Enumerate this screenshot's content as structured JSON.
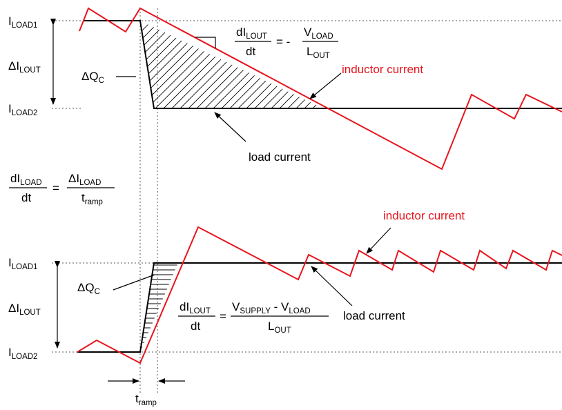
{
  "colors": {
    "inductor": "#e8141c",
    "load": "#000000",
    "guide": "#555555"
  },
  "top": {
    "i_load1": {
      "main": "I",
      "sub": "LOAD1"
    },
    "i_load2": {
      "main": "I",
      "sub": "LOAD2"
    },
    "delta_i_lout": {
      "main": "ΔI",
      "sub": "LOUT"
    },
    "delta_qc": {
      "main": "ΔQ",
      "sub": "C"
    },
    "slope_eq": {
      "num_main": "dI",
      "num_sub": "LOUT",
      "den": "dt",
      "equals": "= -",
      "rhs_num_main": "V",
      "rhs_num_sub": "LOAD",
      "rhs_den_main": "L",
      "rhs_den_sub": "OUT"
    },
    "inductor_label": "inductor current",
    "load_label": "load current"
  },
  "ramp_eq": {
    "num_main": "dI",
    "num_sub": "LOAD",
    "den": "dt",
    "equals": "=",
    "rhs_num_main": "ΔI",
    "rhs_num_sub": "LOAD",
    "rhs_den_main": "t",
    "rhs_den_sub": "ramp"
  },
  "bottom": {
    "i_load1": {
      "main": "I",
      "sub": "LOAD1"
    },
    "i_load2": {
      "main": "I",
      "sub": "LOAD2"
    },
    "delta_i_lout": {
      "main": "ΔI",
      "sub": "LOUT"
    },
    "delta_qc": {
      "main": "ΔQ",
      "sub": "C"
    },
    "slope_eq": {
      "num_main": "dI",
      "num_sub": "LOUT",
      "den": "dt",
      "equals": "=",
      "rhs_num_a_main": "V",
      "rhs_num_a_sub": "SUPPLY",
      "rhs_num_mid": " - ",
      "rhs_num_b_main": "V",
      "rhs_num_b_sub": "LOAD",
      "rhs_den_main": "L",
      "rhs_den_sub": "OUT"
    },
    "inductor_label": "inductor current",
    "load_label": "load current",
    "tramp": {
      "main": "t",
      "sub": "ramp"
    }
  }
}
